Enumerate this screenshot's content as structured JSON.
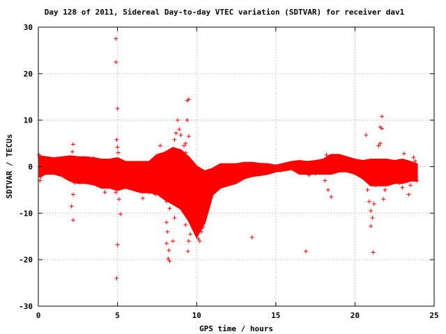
{
  "chart_data": {
    "type": "scatter",
    "title": "Day 128 of 2011, Sidereal Day-to-day VTEC variation (SDTVAR) for receiver dav1",
    "xlabel": "GPS time / hours",
    "ylabel": "SDTVAR / TECUs",
    "xlim": [
      0,
      25
    ],
    "ylim": [
      -30,
      30
    ],
    "xticks": [
      0,
      5,
      10,
      15,
      20,
      25
    ],
    "yticks": [
      -30,
      -20,
      -10,
      0,
      10,
      20,
      30
    ],
    "xtick_labels": [
      "0",
      "5",
      "10",
      "15",
      "20",
      "25"
    ],
    "ytick_labels": [
      "-30",
      "-20",
      "-10",
      "0",
      "10",
      "20",
      "30"
    ],
    "grid": true,
    "marker": "+",
    "color": "#ff0000",
    "series": [
      {
        "points": [
          [
            0.05,
            2.5
          ],
          [
            0.1,
            1.8
          ],
          [
            0.15,
            -2.2
          ],
          [
            0.1,
            -3.0
          ],
          [
            0.2,
            0.5
          ],
          [
            0.25,
            1.2
          ],
          [
            0.3,
            -1.0
          ],
          [
            0.4,
            0.3
          ],
          [
            2.2,
            4.8
          ],
          [
            2.2,
            -11.5
          ],
          [
            2.1,
            -8.5
          ],
          [
            2.2,
            -6.0
          ],
          [
            2.3,
            -3.5
          ],
          [
            2.25,
            2.0
          ],
          [
            2.15,
            3.2
          ],
          [
            2.3,
            1.0
          ],
          [
            3.5,
            1.8
          ],
          [
            3.5,
            -3.2
          ],
          [
            4.2,
            -5.5
          ],
          [
            4.5,
            -4.0
          ],
          [
            4.9,
            27.5
          ],
          [
            4.9,
            22.5
          ],
          [
            5.0,
            12.5
          ],
          [
            4.95,
            5.8
          ],
          [
            5.0,
            4.2
          ],
          [
            5.0,
            -16.8
          ],
          [
            4.95,
            -24.0
          ],
          [
            5.2,
            -10.2
          ],
          [
            4.9,
            -5.5
          ],
          [
            5.1,
            -7.0
          ],
          [
            5.05,
            3.0
          ],
          [
            6.6,
            -6.8
          ],
          [
            6.9,
            -4.8
          ],
          [
            7.0,
            -5.5
          ],
          [
            6.8,
            -4.0
          ],
          [
            7.4,
            -6.0
          ],
          [
            7.5,
            0.5
          ],
          [
            7.7,
            4.5
          ],
          [
            7.8,
            -4.0
          ],
          [
            7.9,
            -5.0
          ],
          [
            8.0,
            -6.8
          ],
          [
            8.1,
            -12.0
          ],
          [
            8.15,
            -14.0
          ],
          [
            8.1,
            -16.5
          ],
          [
            8.25,
            -18.0
          ],
          [
            8.3,
            -20.3
          ],
          [
            8.2,
            -19.8
          ],
          [
            8.3,
            -9.0
          ],
          [
            8.1,
            -7.5
          ],
          [
            8.4,
            -6.0
          ],
          [
            8.5,
            -3.5
          ],
          [
            8.5,
            -16.0
          ],
          [
            8.6,
            -11.0
          ],
          [
            8.4,
            2.5
          ],
          [
            8.6,
            5.8
          ],
          [
            8.7,
            7.2
          ],
          [
            8.8,
            10.0
          ],
          [
            8.9,
            8.0
          ],
          [
            9.0,
            6.8
          ],
          [
            9.2,
            4.5
          ],
          [
            9.3,
            3.0
          ],
          [
            9.4,
            14.2
          ],
          [
            9.5,
            14.5
          ],
          [
            9.4,
            10.0
          ],
          [
            9.5,
            6.5
          ],
          [
            9.3,
            5.0
          ],
          [
            9.45,
            -18.2
          ],
          [
            9.5,
            -16.0
          ],
          [
            9.6,
            -14.5
          ],
          [
            9.3,
            -12.5
          ],
          [
            8.9,
            -7.5
          ],
          [
            9.1,
            -6.5
          ],
          [
            9.2,
            -9.8
          ],
          [
            9.0,
            -5.2
          ],
          [
            9.6,
            -4.0
          ],
          [
            9.7,
            -3.0
          ],
          [
            9.8,
            -6.0
          ],
          [
            9.9,
            -8.0
          ],
          [
            10.0,
            -12.0
          ],
          [
            10.1,
            -15.5
          ],
          [
            10.2,
            -16.0
          ],
          [
            10.3,
            -14.0
          ],
          [
            10.4,
            -13.0
          ],
          [
            10.5,
            -11.0
          ],
          [
            10.6,
            -10.0
          ],
          [
            10.7,
            -8.0
          ],
          [
            10.8,
            -7.0
          ],
          [
            10.9,
            -6.0
          ],
          [
            11.0,
            -5.0
          ],
          [
            10.8,
            -1.5
          ],
          [
            10.9,
            -2.0
          ],
          [
            10.8,
            -3.5
          ],
          [
            11.2,
            -4.5
          ],
          [
            11.5,
            -3.8
          ],
          [
            11.8,
            -2.5
          ],
          [
            12.0,
            -3.0
          ],
          [
            12.3,
            -2.5
          ],
          [
            12.6,
            -3.0
          ],
          [
            12.9,
            -2.0
          ],
          [
            11.3,
            -1.0
          ],
          [
            11.6,
            -0.5
          ],
          [
            12.0,
            -0.8
          ],
          [
            12.5,
            0.3
          ],
          [
            13.0,
            -1.2
          ],
          [
            13.3,
            -1.5
          ],
          [
            13.7,
            -0.8
          ],
          [
            14.0,
            -0.5
          ],
          [
            14.5,
            0.2
          ],
          [
            13.5,
            -15.2
          ],
          [
            14.7,
            -0.8
          ],
          [
            15.0,
            0.0
          ],
          [
            15.3,
            -0.8
          ],
          [
            15.6,
            -0.5
          ],
          [
            15.9,
            0.2
          ],
          [
            16.2,
            0.6
          ],
          [
            16.6,
            0.5
          ],
          [
            17.0,
            0.8
          ],
          [
            17.3,
            0.6
          ],
          [
            17.6,
            0.4
          ],
          [
            16.9,
            -18.2
          ],
          [
            17.1,
            -1.8
          ],
          [
            17.5,
            -1.5
          ],
          [
            17.8,
            -0.5
          ],
          [
            18.1,
            -3.0
          ],
          [
            18.3,
            -5.0
          ],
          [
            18.5,
            -6.5
          ],
          [
            18.2,
            2.5
          ],
          [
            18.6,
            1.8
          ],
          [
            18.9,
            0.5
          ],
          [
            19.1,
            2.0
          ],
          [
            19.3,
            1.5
          ],
          [
            19.5,
            1.2
          ],
          [
            19.8,
            0.8
          ],
          [
            20.0,
            0.4
          ],
          [
            20.2,
            -0.8
          ],
          [
            20.4,
            -1.5
          ],
          [
            20.6,
            -2.5
          ],
          [
            20.7,
            6.8
          ],
          [
            20.8,
            -5.0
          ],
          [
            20.9,
            -7.5
          ],
          [
            21.0,
            -9.5
          ],
          [
            21.1,
            -11.0
          ],
          [
            21.0,
            -12.8
          ],
          [
            21.15,
            -18.4
          ],
          [
            21.2,
            -8.0
          ],
          [
            21.3,
            -4.0
          ],
          [
            21.4,
            -3.0
          ],
          [
            21.5,
            4.5
          ],
          [
            21.6,
            5.0
          ],
          [
            21.6,
            8.5
          ],
          [
            21.7,
            10.8
          ],
          [
            21.7,
            8.2
          ],
          [
            21.8,
            -7.0
          ],
          [
            21.9,
            -5.0
          ],
          [
            22.0,
            -3.2
          ],
          [
            22.1,
            -2.0
          ],
          [
            22.5,
            -1.0
          ],
          [
            22.8,
            -3.5
          ],
          [
            23.0,
            -4.5
          ],
          [
            23.1,
            2.8
          ],
          [
            23.2,
            -2.2
          ],
          [
            23.4,
            -6.0
          ],
          [
            23.5,
            -4.0
          ],
          [
            23.6,
            -2.5
          ],
          [
            23.8,
            -1.0
          ],
          [
            23.85,
            0.5
          ],
          [
            23.8,
            1.2
          ],
          [
            23.9,
            -3.0
          ],
          [
            23.7,
            2.0
          ]
        ]
      }
    ],
    "bands": [
      [
        0.1,
        -2.0,
        2.2
      ],
      [
        0.5,
        -1.5,
        2.0
      ],
      [
        1.0,
        -1.5,
        1.8
      ],
      [
        1.5,
        -2.0,
        2.0
      ],
      [
        2.0,
        -3.0,
        2.2
      ],
      [
        2.5,
        -3.5,
        2.0
      ],
      [
        3.0,
        -3.5,
        2.0
      ],
      [
        3.5,
        -3.8,
        1.8
      ],
      [
        4.0,
        -4.5,
        1.5
      ],
      [
        4.5,
        -4.5,
        1.5
      ],
      [
        5.0,
        -5.0,
        1.8
      ],
      [
        5.5,
        -4.5,
        1.0
      ],
      [
        6.0,
        -5.0,
        1.0
      ],
      [
        6.5,
        -5.5,
        1.0
      ],
      [
        7.0,
        -5.5,
        1.0
      ],
      [
        7.5,
        -5.8,
        2.5
      ],
      [
        8.0,
        -7.0,
        3.0
      ],
      [
        8.5,
        -8.0,
        4.0
      ],
      [
        9.0,
        -9.0,
        3.5
      ],
      [
        9.5,
        -11.5,
        2.0
      ],
      [
        10.0,
        -15.0,
        0.0
      ],
      [
        10.5,
        -12.0,
        -1.0
      ],
      [
        11.0,
        -6.0,
        -0.5
      ],
      [
        11.5,
        -4.5,
        0.5
      ],
      [
        12.0,
        -4.0,
        0.5
      ],
      [
        12.5,
        -3.5,
        0.5
      ],
      [
        13.0,
        -2.5,
        0.8
      ],
      [
        13.5,
        -2.0,
        0.8
      ],
      [
        14.0,
        -1.8,
        0.6
      ],
      [
        14.5,
        -1.5,
        0.5
      ],
      [
        15.0,
        -1.0,
        0.2
      ],
      [
        15.5,
        -0.8,
        0.6
      ],
      [
        16.0,
        -0.5,
        1.0
      ],
      [
        16.5,
        -1.5,
        1.2
      ],
      [
        17.0,
        -1.5,
        1.0
      ],
      [
        17.5,
        -1.5,
        1.2
      ],
      [
        18.0,
        -1.5,
        1.5
      ],
      [
        18.5,
        -1.5,
        2.5
      ],
      [
        19.0,
        -1.0,
        2.5
      ],
      [
        19.5,
        -1.0,
        2.0
      ],
      [
        20.0,
        -1.5,
        1.5
      ],
      [
        20.5,
        -2.5,
        1.2
      ],
      [
        21.0,
        -4.0,
        1.5
      ],
      [
        21.5,
        -4.0,
        1.5
      ],
      [
        22.0,
        -4.0,
        1.5
      ],
      [
        22.5,
        -3.5,
        1.2
      ],
      [
        23.0,
        -3.5,
        1.5
      ],
      [
        23.5,
        -3.0,
        1.0
      ],
      [
        23.9,
        -3.0,
        0.5
      ]
    ]
  }
}
